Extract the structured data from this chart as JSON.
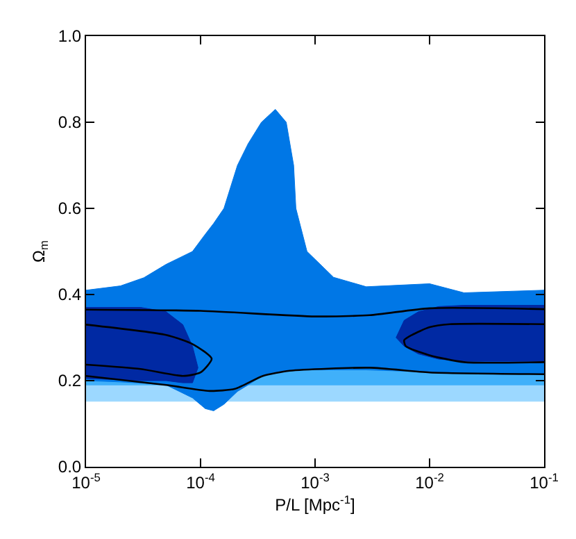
{
  "chart_data": {
    "type": "area",
    "xlabel": "P/L [Mpc$^{-1}$]",
    "ylabel": "Ω$_{m}$",
    "log": "x",
    "xlim": [
      1e-05,
      0.1
    ],
    "xticks": [
      {
        "value": 1e-05,
        "label": "10$^{-5}$"
      },
      {
        "value": 0.0001,
        "label": "10$^{-4}$"
      },
      {
        "value": 0.001,
        "label": "10$^{-3}$"
      },
      {
        "value": 0.01,
        "label": "10$^{-2}$"
      },
      {
        "value": 0.1,
        "label": "10$^{-1}$"
      }
    ],
    "ylim": [
      0,
      1
    ],
    "yticks": [
      {
        "value": 0,
        "label": "0.0"
      },
      {
        "value": 0.2,
        "label": "0.2"
      },
      {
        "value": 0.4,
        "label": "0.4"
      },
      {
        "value": 0.6,
        "label": "0.6"
      },
      {
        "value": 0.8,
        "label": "0.8"
      },
      {
        "value": 1,
        "label": "1.0"
      }
    ],
    "series": [
      {
        "color": "#9cd8ff",
        "x": [
          1e-05,
          0.1,
          0.1,
          1e-05
        ],
        "values": [
          0.19,
          0.19,
          0.152,
          0.152
        ]
      },
      {
        "color": "#40b0fa",
        "x": [
          1e-05,
          0.1,
          0.1,
          1e-05
        ],
        "values": [
          0.375,
          0.375,
          0.19,
          0.19
        ]
      },
      {
        "color": "#0077e6",
        "x": [
          1e-05,
          2e-05,
          3.2e-05,
          5e-05,
          8.5e-05,
          0.00011,
          0.00013,
          0.00016,
          0.00021,
          0.00026,
          0.00034,
          0.00045,
          0.00056,
          0.00065,
          0.00068,
          0.00085,
          0.00145,
          0.0028,
          0.01,
          0.02,
          0.1,
          0.1,
          0.02,
          0.01,
          0.0028,
          0.00145,
          0.00085,
          0.00068,
          0.00065,
          0.00056,
          0.00045,
          0.00034,
          0.00026,
          0.00021,
          0.00016,
          0.00013,
          0.00011,
          8.5e-05,
          5e-05,
          3.2e-05,
          2e-05,
          1e-05
        ],
        "values": [
          0.41,
          0.42,
          0.439,
          0.47,
          0.5,
          0.54,
          0.565,
          0.6,
          0.7,
          0.75,
          0.8,
          0.83,
          0.8,
          0.7,
          0.6,
          0.5,
          0.44,
          0.418,
          0.425,
          0.404,
          0.41,
          0.215,
          0.217,
          0.22,
          0.225,
          0.225,
          0.225,
          0.224,
          0.224,
          0.222,
          0.22,
          0.21,
          0.19,
          0.175,
          0.145,
          0.13,
          0.135,
          0.16,
          0.19,
          0.194,
          0.197,
          0.2
        ]
      },
      {
        "color": "#0029a3",
        "x": [
          1e-05,
          3e-05,
          5e-05,
          7e-05,
          8.5e-05,
          9.5e-05,
          8.5e-05,
          7e-05,
          5e-05,
          3e-05,
          1e-05
        ],
        "values": [
          0.37,
          0.37,
          0.36,
          0.33,
          0.28,
          0.23,
          0.195,
          0.195,
          0.2,
          0.2,
          0.205
        ]
      },
      {
        "color": "#0029a3",
        "x": [
          0.0051,
          0.006,
          0.008,
          0.012,
          0.02,
          0.1,
          0.1,
          0.02,
          0.012,
          0.008,
          0.006,
          0.0051
        ],
        "values": [
          0.3,
          0.34,
          0.36,
          0.372,
          0.375,
          0.375,
          0.245,
          0.245,
          0.25,
          0.262,
          0.28,
          0.3
        ]
      },
      {
        "type": "line",
        "color": "#000000",
        "x": [
          1e-05,
          0.0001,
          0.001,
          0.003,
          0.01,
          0.1
        ],
        "values": [
          0.365,
          0.362,
          0.349,
          0.352,
          0.368,
          0.366
        ]
      },
      {
        "type": "line",
        "color": "#000000",
        "x": [
          1e-05,
          5e-05,
          0.00012,
          0.0002,
          0.00035,
          0.0006,
          0.003,
          0.01,
          0.1
        ],
        "values": [
          0.211,
          0.19,
          0.176,
          0.181,
          0.211,
          0.223,
          0.23,
          0.219,
          0.215
        ]
      },
      {
        "type": "line",
        "color": "#000000",
        "x": [
          1e-05,
          5e-05,
          8.5e-05,
          0.000125,
          0.0001,
          7e-05,
          3e-05,
          1e-05
        ],
        "values": [
          0.33,
          0.306,
          0.285,
          0.251,
          0.219,
          0.211,
          0.227,
          0.237
        ]
      },
      {
        "type": "line",
        "color": "#000000",
        "x": [
          0.1,
          0.015,
          0.01,
          0.007,
          0.006,
          0.0062,
          0.01,
          0.02,
          0.1
        ],
        "values": [
          0.331,
          0.331,
          0.324,
          0.306,
          0.294,
          0.28,
          0.259,
          0.243,
          0.243
        ]
      }
    ]
  }
}
